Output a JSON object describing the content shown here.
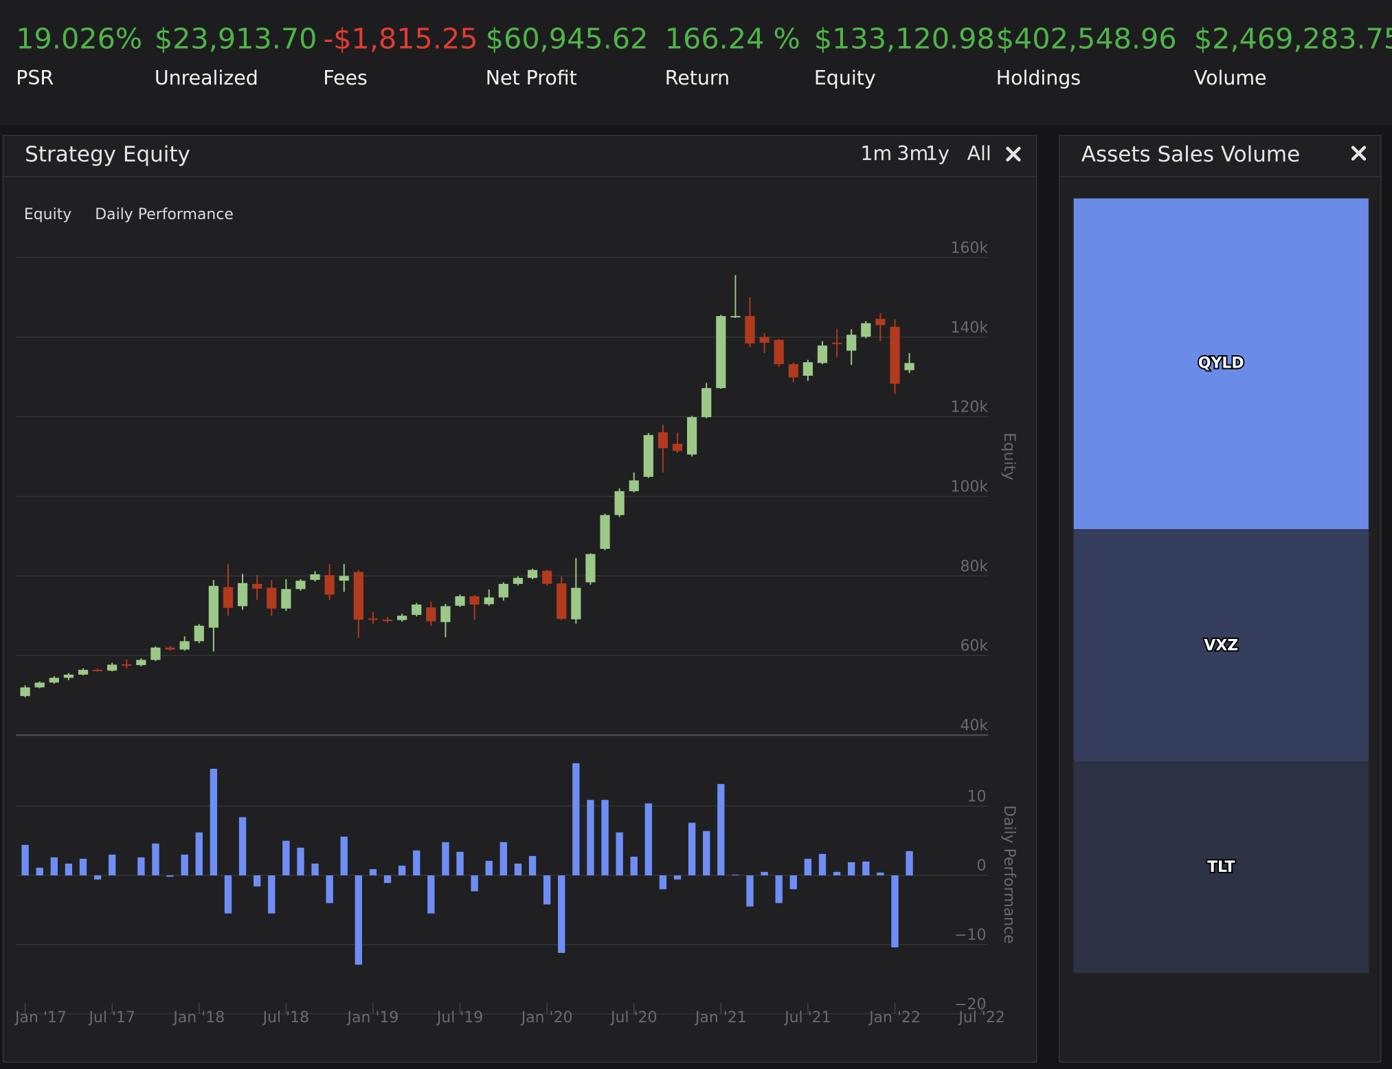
{
  "stats": [
    {
      "value": "19.026%",
      "label": "PSR",
      "color": "#4fb548"
    },
    {
      "value": "$23,913.70",
      "label": "Unrealized",
      "color": "#4fb548"
    },
    {
      "value": "-$1,815.25",
      "label": "Fees",
      "color": "#e23b33"
    },
    {
      "value": "$60,945.62",
      "label": "Net Profit",
      "color": "#4fb548"
    },
    {
      "value": "166.24 %",
      "label": "Return",
      "color": "#4fb548"
    },
    {
      "value": "$133,120.98",
      "label": "Equity",
      "color": "#4fb548"
    },
    {
      "value": "$402,548.96",
      "label": "Holdings",
      "color": "#4fb548"
    },
    {
      "value": "$2,469,283.75",
      "label": "Volume",
      "color": "#4fb548"
    }
  ],
  "range_buttons": [
    "1m",
    "3m",
    "1y",
    "All"
  ],
  "chart_data": [
    {
      "type": "candlestick",
      "title": "Strategy Equity",
      "ylabel": "Equity",
      "x": [
        "2017-01",
        "2017-02",
        "2017-03",
        "2017-04",
        "2017-05",
        "2017-06",
        "2017-07",
        "2017-08",
        "2017-09",
        "2017-10",
        "2017-11",
        "2017-12",
        "2018-01",
        "2018-02",
        "2018-03",
        "2018-04",
        "2018-05",
        "2018-06",
        "2018-07",
        "2018-08",
        "2018-09",
        "2018-10",
        "2018-11",
        "2018-12",
        "2019-01",
        "2019-02",
        "2019-03",
        "2019-04",
        "2019-05",
        "2019-06",
        "2019-07",
        "2019-08",
        "2019-09",
        "2019-10",
        "2019-11",
        "2019-12",
        "2020-01",
        "2020-02",
        "2020-03",
        "2020-04",
        "2020-05",
        "2020-06",
        "2020-07",
        "2020-08",
        "2020-09",
        "2020-10",
        "2020-11",
        "2020-12",
        "2021-01",
        "2021-02",
        "2021-03",
        "2021-04",
        "2021-05",
        "2021-06",
        "2021-07",
        "2021-08",
        "2021-09",
        "2021-10",
        "2021-11",
        "2021-12",
        "2022-01",
        "2022-02"
      ],
      "xlim": [
        "2016-12",
        "2022-07"
      ],
      "series": [
        {
          "name": "Equity",
          "up_color": "#9cc988",
          "down_color": "#b23a1d",
          "open": [
            49800,
            52000,
            53200,
            54400,
            55200,
            56400,
            56200,
            57800,
            57600,
            58900,
            62000,
            61500,
            63600,
            67000,
            77200,
            72400,
            78000,
            77000,
            71800,
            76700,
            79000,
            80200,
            78800,
            81000,
            69300,
            69000,
            68900,
            70200,
            72100,
            68400,
            72500,
            74900,
            72900,
            74600,
            78000,
            79500,
            81300,
            78100,
            69100,
            78400,
            86800,
            95300,
            101300,
            104900,
            116100,
            113200,
            110500,
            119900,
            127200,
            145000,
            145300,
            140000,
            139300,
            133200,
            130300,
            133500,
            138600,
            136600,
            140100,
            144600,
            142600,
            131700
          ],
          "high": [
            52500,
            53500,
            54800,
            55600,
            56800,
            56700,
            58200,
            59000,
            59300,
            62300,
            62400,
            64800,
            67900,
            79000,
            83000,
            80500,
            80200,
            79000,
            79200,
            79200,
            81200,
            83000,
            83000,
            81500,
            71000,
            69700,
            70500,
            73200,
            73500,
            73000,
            75300,
            75200,
            76600,
            78400,
            79900,
            81800,
            81500,
            79800,
            84500,
            85700,
            95600,
            102000,
            106000,
            115900,
            118000,
            116000,
            120200,
            128500,
            145600,
            155600,
            150000,
            141000,
            139500,
            133600,
            134300,
            139000,
            142000,
            142000,
            144000,
            146000,
            144500,
            136000
          ],
          "low": [
            49500,
            51800,
            52900,
            53800,
            55000,
            56000,
            56000,
            56800,
            57300,
            58600,
            61200,
            61200,
            63100,
            61000,
            70000,
            71500,
            74000,
            70000,
            71200,
            76300,
            78600,
            74000,
            76000,
            64500,
            68000,
            68200,
            68500,
            69800,
            67500,
            64600,
            72200,
            69000,
            72500,
            73800,
            77600,
            79200,
            77600,
            68900,
            68000,
            77800,
            86500,
            94800,
            101000,
            104600,
            106000,
            111000,
            110000,
            119600,
            127000,
            144800,
            137500,
            136000,
            132500,
            128600,
            129000,
            133200,
            135000,
            133000,
            139700,
            139000,
            125700,
            131000
          ],
          "close": [
            52000,
            53200,
            54400,
            55200,
            56400,
            56200,
            57700,
            57600,
            58900,
            62000,
            61500,
            63600,
            67500,
            77500,
            72000,
            78200,
            76800,
            71800,
            76700,
            78800,
            80400,
            75300,
            80000,
            69000,
            69100,
            68700,
            70000,
            72800,
            68600,
            72400,
            74900,
            72800,
            74600,
            78000,
            79500,
            81500,
            78000,
            69200,
            77000,
            85500,
            95300,
            101300,
            104000,
            115400,
            112100,
            111400,
            119900,
            127200,
            145300,
            145300,
            138400,
            138600,
            133200,
            129900,
            133700,
            137900,
            138500,
            140600,
            143500,
            143000,
            128300,
            133500
          ]
        }
      ],
      "ylim": [
        40000,
        160000
      ],
      "yticks": [
        {
          "value": 40000,
          "label": "40k"
        },
        {
          "value": 60000,
          "label": "60k"
        },
        {
          "value": 80000,
          "label": "80k"
        },
        {
          "value": 100000,
          "label": "100k"
        },
        {
          "value": 120000,
          "label": "120k"
        },
        {
          "value": 140000,
          "label": "140k"
        },
        {
          "value": 160000,
          "label": "160k"
        }
      ],
      "grid": true
    },
    {
      "type": "bar",
      "ylabel": "Daily Performance",
      "x": [
        "2017-01",
        "2017-02",
        "2017-03",
        "2017-04",
        "2017-05",
        "2017-06",
        "2017-07",
        "2017-08",
        "2017-09",
        "2017-10",
        "2017-11",
        "2017-12",
        "2018-01",
        "2018-02",
        "2018-03",
        "2018-04",
        "2018-05",
        "2018-06",
        "2018-07",
        "2018-08",
        "2018-09",
        "2018-10",
        "2018-11",
        "2018-12",
        "2019-01",
        "2019-02",
        "2019-03",
        "2019-04",
        "2019-05",
        "2019-06",
        "2019-07",
        "2019-08",
        "2019-09",
        "2019-10",
        "2019-11",
        "2019-12",
        "2020-01",
        "2020-02",
        "2020-03",
        "2020-04",
        "2020-05",
        "2020-06",
        "2020-07",
        "2020-08",
        "2020-09",
        "2020-10",
        "2020-11",
        "2020-12",
        "2021-01",
        "2021-02",
        "2021-03",
        "2021-04",
        "2021-05",
        "2021-06",
        "2021-07",
        "2021-08",
        "2021-09",
        "2021-10",
        "2021-11",
        "2021-12",
        "2022-01",
        "2022-02"
      ],
      "xlim": [
        "2016-12",
        "2022-07"
      ],
      "xticks": [
        {
          "value": "2017-01",
          "label": "Jan '17"
        },
        {
          "value": "2017-07",
          "label": "Jul '17"
        },
        {
          "value": "2018-01",
          "label": "Jan '18"
        },
        {
          "value": "2018-07",
          "label": "Jul '18"
        },
        {
          "value": "2019-01",
          "label": "Jan '19"
        },
        {
          "value": "2019-07",
          "label": "Jul '19"
        },
        {
          "value": "2020-01",
          "label": "Jan '20"
        },
        {
          "value": "2020-07",
          "label": "Jul '20"
        },
        {
          "value": "2021-01",
          "label": "Jan '21"
        },
        {
          "value": "2021-07",
          "label": "Jul '21"
        },
        {
          "value": "2022-01",
          "label": "Jan '22"
        },
        {
          "value": "2022-07",
          "label": "Jul '22"
        }
      ],
      "series": [
        {
          "name": "Daily Performance",
          "color": "#6f8ef5",
          "values": [
            4.4,
            1.1,
            2.6,
            1.7,
            2.4,
            -0.6,
            3.0,
            0,
            2.6,
            4.6,
            -0.2,
            3.0,
            6.2,
            15.4,
            -5.5,
            8.4,
            -1.6,
            -5.5,
            5.0,
            4.0,
            1.7,
            -4.0,
            5.6,
            -12.9,
            0.9,
            -1.1,
            1.4,
            3.6,
            -5.5,
            4.8,
            3.4,
            -2.3,
            2.1,
            4.8,
            1.7,
            2.8,
            -4.2,
            -11.2,
            16.2,
            10.9,
            10.9,
            6.2,
            2.7,
            10.4,
            -2.0,
            -0.6,
            7.6,
            6.4,
            13.2,
            0.1,
            -4.5,
            0.5,
            -4.0,
            -2.0,
            2.4,
            3.1,
            0.5,
            1.9,
            2.0,
            0.4,
            -10.4,
            3.5
          ]
        }
      ],
      "ylim": [
        -20,
        20
      ],
      "yticks": [
        {
          "value": -20,
          "label": "−20"
        },
        {
          "value": -10,
          "label": "−10"
        },
        0,
        10
      ],
      "grid": true
    },
    {
      "type": "treemap",
      "title": "Assets Sales Volume",
      "categories": [
        "QYLD",
        "VXZ",
        "TLT"
      ],
      "values": [
        42.8,
        30.0,
        27.2
      ],
      "colors": [
        "#6b8be8",
        "#363e5e",
        "#2d3345"
      ]
    }
  ]
}
